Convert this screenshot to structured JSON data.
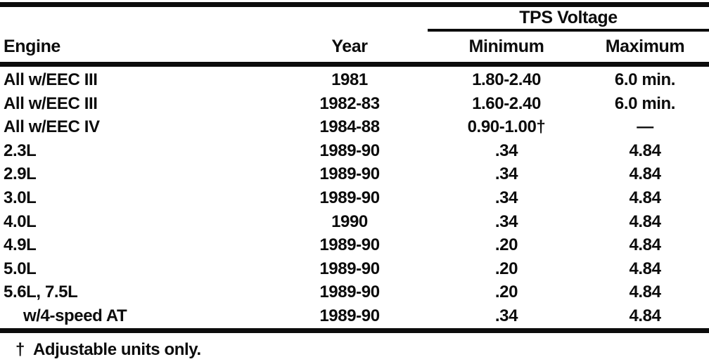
{
  "table": {
    "spanner": "TPS Voltage",
    "columns": {
      "engine": "Engine",
      "year": "Year",
      "min": "Minimum",
      "max": "Maximum"
    },
    "rows": [
      {
        "engine": "All w/EEC III",
        "year": "1981",
        "min": "1.80-2.40",
        "max": "6.0 min.",
        "indent": false
      },
      {
        "engine": "All w/EEC III",
        "year": "1982-83",
        "min": "1.60-2.40",
        "max": "6.0 min.",
        "indent": false
      },
      {
        "engine": "All w/EEC IV",
        "year": "1984-88",
        "min": "0.90-1.00†",
        "max": "—",
        "indent": false
      },
      {
        "engine": "2.3L",
        "year": "1989-90",
        "min": ".34",
        "max": "4.84",
        "indent": false
      },
      {
        "engine": "2.9L",
        "year": "1989-90",
        "min": ".34",
        "max": "4.84",
        "indent": false
      },
      {
        "engine": "3.0L",
        "year": "1989-90",
        "min": ".34",
        "max": "4.84",
        "indent": false
      },
      {
        "engine": "4.0L",
        "year": "1990",
        "min": ".34",
        "max": "4.84",
        "indent": false
      },
      {
        "engine": "4.9L",
        "year": "1989-90",
        "min": ".20",
        "max": "4.84",
        "indent": false
      },
      {
        "engine": "5.0L",
        "year": "1989-90",
        "min": ".20",
        "max": "4.84",
        "indent": false
      },
      {
        "engine": "5.6L, 7.5L",
        "year": "1989-90",
        "min": ".20",
        "max": "4.84",
        "indent": false
      },
      {
        "engine": "w/4-speed AT",
        "year": "1989-90",
        "min": ".34",
        "max": "4.84",
        "indent": true
      }
    ],
    "footnote": {
      "marker": "†",
      "text": "Adjustable units only."
    },
    "ink_color": "#0c0c0c",
    "background_color": "#ffffff"
  }
}
